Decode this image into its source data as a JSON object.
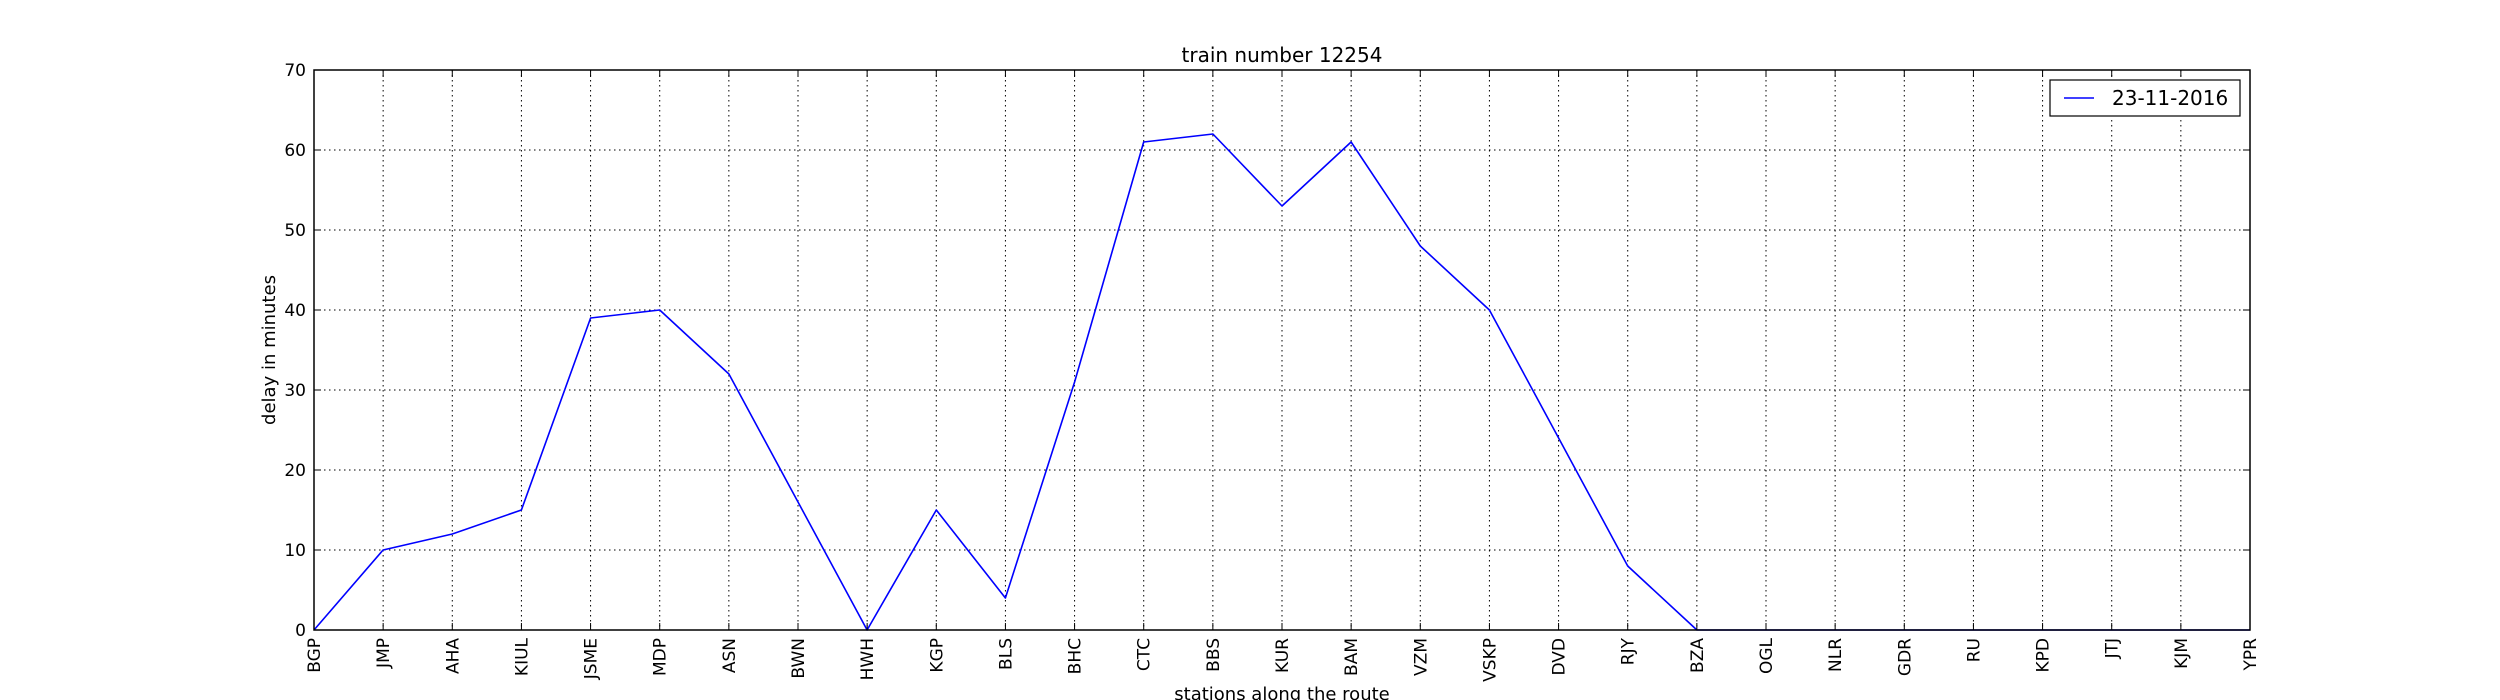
{
  "chart_data": {
    "type": "line",
    "title": "train number 12254",
    "xlabel": "stations along the route",
    "ylabel": "delay in minutes",
    "ylim": [
      0,
      70
    ],
    "yticks": [
      0,
      10,
      20,
      30,
      40,
      50,
      60,
      70
    ],
    "grid": true,
    "legend_position": "top-right",
    "categories": [
      "BGP",
      "JMP",
      "AHA",
      "KIUL",
      "JSME",
      "MDP",
      "ASN",
      "BWN",
      "HWH",
      "KGP",
      "BLS",
      "BHC",
      "CTC",
      "BBS",
      "KUR",
      "BAM",
      "VZM",
      "VSKP",
      "DVD",
      "RJY",
      "BZA",
      "OGL",
      "NLR",
      "GDR",
      "RU",
      "KPD",
      "JTJ",
      "KJM",
      "YPR"
    ],
    "series": [
      {
        "name": "23-11-2016",
        "color": "#0000ff",
        "values": [
          0,
          10,
          12,
          15,
          39,
          40,
          32,
          16,
          0,
          15,
          4,
          31,
          61,
          62,
          53,
          61,
          48,
          40,
          24,
          8,
          0,
          0,
          0,
          0,
          0,
          0,
          0,
          0,
          0
        ]
      }
    ]
  }
}
